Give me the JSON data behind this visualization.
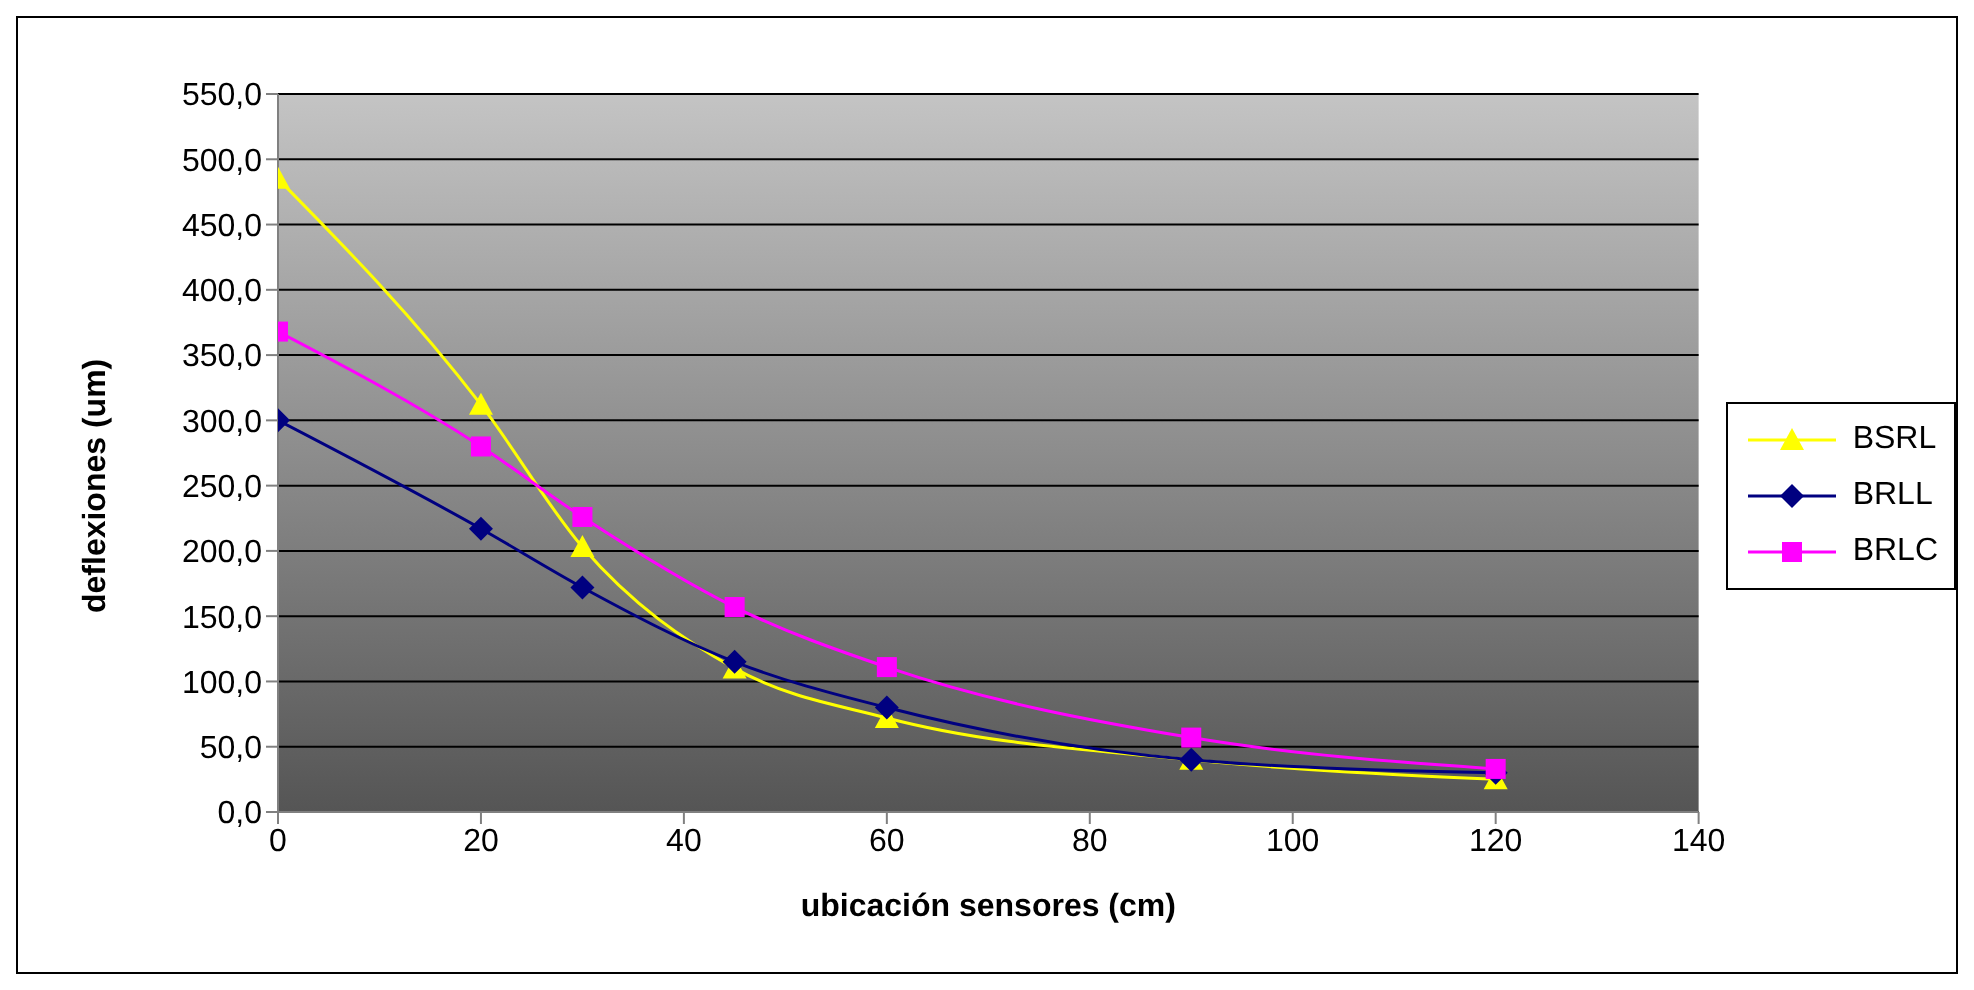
{
  "chart_data": {
    "type": "line",
    "xlabel": "ubicación sensores (cm)",
    "ylabel": "deflexiones (um)",
    "x": [
      0,
      20,
      30,
      45,
      60,
      90,
      120
    ],
    "series": [
      {
        "name": "BSRL",
        "color": "#ffff00",
        "marker": "triangle",
        "values": [
          485,
          312,
          203,
          110,
          72,
          40,
          25
        ]
      },
      {
        "name": "BRLL",
        "color": "#000080",
        "marker": "diamond",
        "values": [
          300,
          217,
          172,
          115,
          80,
          40,
          30
        ]
      },
      {
        "name": "BRLC",
        "color": "#ff00ff",
        "marker": "square",
        "values": [
          368,
          280,
          226,
          157,
          111,
          57,
          33
        ]
      }
    ],
    "xlim": [
      0,
      140
    ],
    "xticks": [
      0,
      20,
      40,
      60,
      80,
      100,
      120,
      140
    ],
    "ylim": [
      0,
      550
    ],
    "yticks": [
      {
        "value": 0,
        "label": "0,0"
      },
      {
        "value": 50,
        "label": "50,0"
      },
      {
        "value": 100,
        "label": "100,0"
      },
      {
        "value": 150,
        "label": "150,0"
      },
      {
        "value": 200,
        "label": "200,0"
      },
      {
        "value": 250,
        "label": "250,0"
      },
      {
        "value": 300,
        "label": "300,0"
      },
      {
        "value": 350,
        "label": "350,0"
      },
      {
        "value": 400,
        "label": "400,0"
      },
      {
        "value": 450,
        "label": "450,0"
      },
      {
        "value": 500,
        "label": "500,0"
      },
      {
        "value": 550,
        "label": "550,0"
      }
    ],
    "grid": "y",
    "legend": "right",
    "line_style": "solid"
  }
}
